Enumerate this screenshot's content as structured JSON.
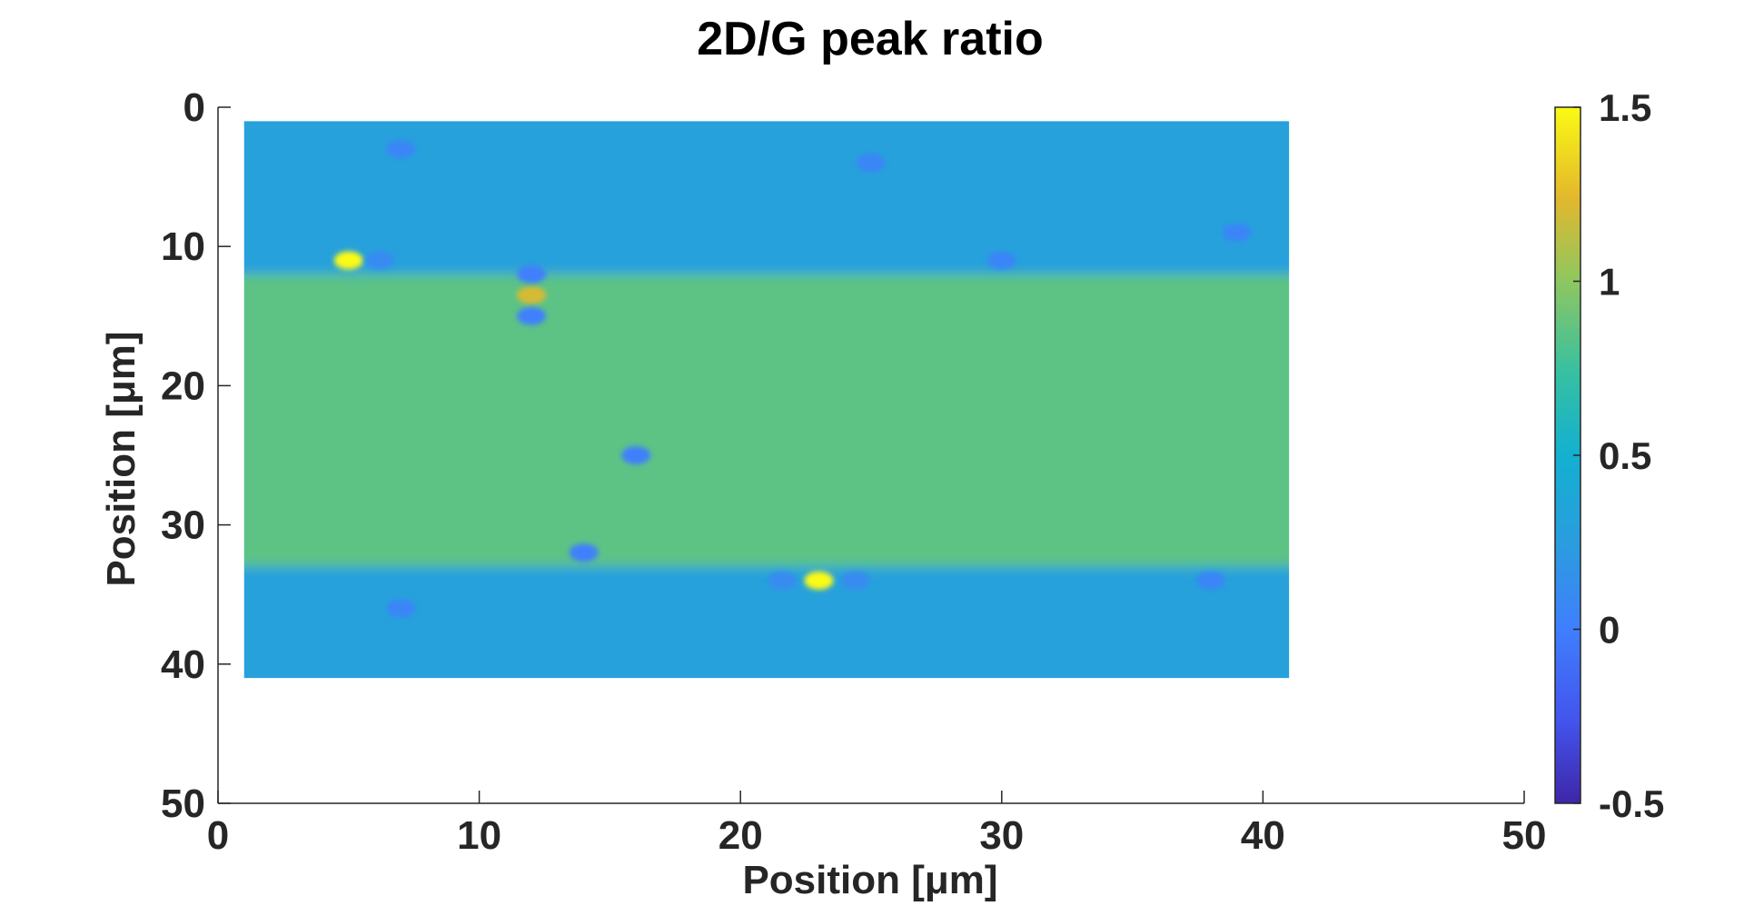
{
  "chart_data": {
    "type": "heatmap",
    "title": "2D/G peak ratio",
    "xlabel": "Position [μm]",
    "ylabel": "Position [μm]",
    "xlim": [
      0,
      50
    ],
    "ylim": [
      0,
      50
    ],
    "y_reversed": true,
    "x_ticks": [
      "0",
      "10",
      "20",
      "30",
      "40",
      "50"
    ],
    "y_ticks": [
      "0",
      "10",
      "20",
      "30",
      "40",
      "50"
    ],
    "colormap": "parula",
    "colorbar": {
      "range": [
        -0.5,
        1.5
      ],
      "ticks": [
        "1.5",
        "1",
        "0.5",
        "0",
        "-0.5"
      ]
    },
    "data_extent": {
      "x": [
        1,
        41
      ],
      "y": [
        1,
        41
      ]
    },
    "regions": [
      {
        "name": "",
        "y_range": [
          1,
          12
        ],
        "value": 0.3
      },
      {
        "name": "",
        "y_range": [
          12,
          33
        ],
        "value": 0.85
      },
      {
        "name": "",
        "y_range": [
          33,
          41
        ],
        "value": 0.3
      }
    ],
    "features": [
      {
        "x": 5,
        "y": 11,
        "value": 1.5
      },
      {
        "x": 23,
        "y": 34,
        "value": 1.5
      },
      {
        "x": 12,
        "y": 13.5,
        "value": 1.2
      },
      {
        "x": 12,
        "y": 12,
        "value": 0.0
      },
      {
        "x": 12,
        "y": 15,
        "value": 0.0
      },
      {
        "x": 16,
        "y": 25,
        "value": 0.0
      },
      {
        "x": 14,
        "y": 32,
        "value": 0.0
      },
      {
        "x": 7,
        "y": 3,
        "value": 0.05
      },
      {
        "x": 25,
        "y": 4,
        "value": 0.05
      },
      {
        "x": 39,
        "y": 9,
        "value": 0.05
      },
      {
        "x": 30,
        "y": 11,
        "value": 0.05
      },
      {
        "x": 7,
        "y": 36,
        "value": 0.05
      },
      {
        "x": 38,
        "y": 34,
        "value": 0.05
      },
      {
        "x": 21.6,
        "y": 34,
        "value": 0.1
      },
      {
        "x": 24.4,
        "y": 34,
        "value": 0.1
      },
      {
        "x": 6.2,
        "y": 11,
        "value": 0.1
      }
    ],
    "grid": false,
    "legend": "none"
  }
}
